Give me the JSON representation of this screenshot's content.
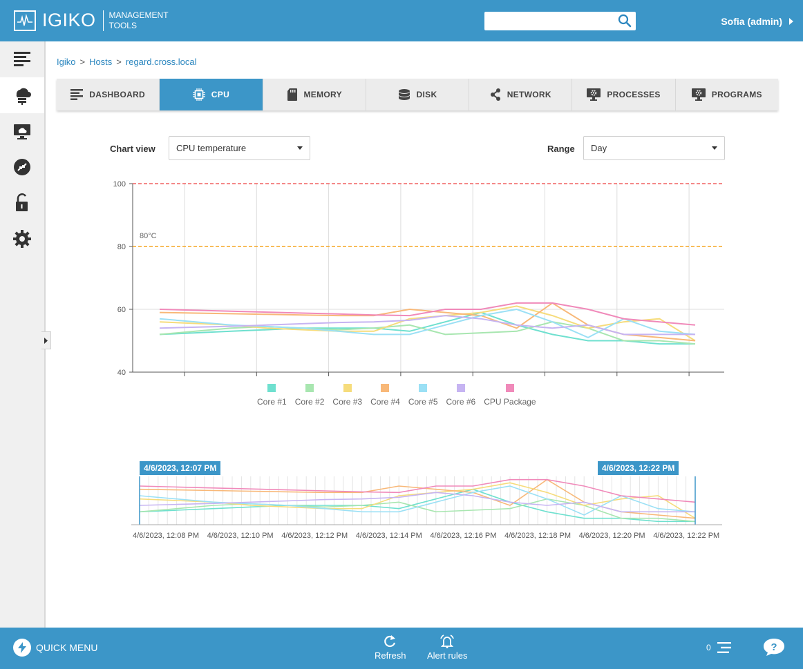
{
  "header": {
    "logo_name": "IGIKO",
    "logo_sub_line1": "MANAGEMENT",
    "logo_sub_line2": "TOOLS",
    "search_value": "",
    "user": "Sofia (admin)"
  },
  "sidebar": {
    "items": [
      {
        "icon": "menu-lines-icon"
      },
      {
        "icon": "cloud-server-icon",
        "active": true
      },
      {
        "icon": "cloud-monitor-icon"
      },
      {
        "icon": "remote-connect-icon"
      },
      {
        "icon": "unlock-icon"
      },
      {
        "icon": "gear-icon"
      }
    ]
  },
  "breadcrumb": {
    "items": [
      "Igiko",
      "Hosts",
      "regard.cross.local"
    ],
    "separator": ">"
  },
  "tabs": [
    {
      "label": "DASHBOARD",
      "icon": "dashboard-lines-icon"
    },
    {
      "label": "CPU",
      "icon": "cpu-chip-icon",
      "active": true
    },
    {
      "label": "MEMORY",
      "icon": "memory-card-icon"
    },
    {
      "label": "DISK",
      "icon": "disk-stack-icon"
    },
    {
      "label": "NETWORK",
      "icon": "network-share-icon"
    },
    {
      "label": "PROCESSES",
      "icon": "monitor-gear-icon"
    },
    {
      "label": "PROGRAMS",
      "icon": "monitor-gear-icon"
    }
  ],
  "controls": {
    "chart_view_label": "Chart view",
    "chart_view_value": "CPU temperature",
    "range_label": "Range",
    "range_value": "Day"
  },
  "chart_data": {
    "type": "line",
    "title": "",
    "ylim": [
      40,
      100
    ],
    "yticks": [
      40,
      60,
      80,
      100
    ],
    "threshold_warning": {
      "value": 80,
      "label": "80°C",
      "color": "#f5a623"
    },
    "threshold_max": {
      "value": 100,
      "color": "#f06060"
    },
    "x_points": 16,
    "series": [
      {
        "name": "Core #1",
        "color": "#6fe0cf",
        "values": [
          52,
          52.5,
          53,
          53.5,
          54,
          54,
          54,
          53,
          56,
          59,
          55,
          52,
          50,
          50,
          49,
          49
        ]
      },
      {
        "name": "Core #2",
        "color": "#a8e6b0",
        "values": [
          52,
          53,
          54,
          54.5,
          54,
          53.5,
          54,
          55,
          52,
          52.5,
          53,
          56,
          54,
          50,
          50,
          49
        ]
      },
      {
        "name": "Core #3",
        "color": "#f6dc7c",
        "values": [
          56,
          55.5,
          55,
          54,
          53.5,
          53,
          53,
          57,
          58,
          59,
          61,
          58,
          54,
          56,
          57,
          50
        ]
      },
      {
        "name": "Core #4",
        "color": "#f8b878",
        "values": [
          59,
          58.8,
          58.6,
          58.4,
          58.2,
          58,
          58,
          60,
          59,
          58,
          54,
          62,
          55,
          52,
          51,
          50
        ]
      },
      {
        "name": "Core #5",
        "color": "#9be0f5",
        "values": [
          57,
          56,
          55,
          54.5,
          54,
          53,
          52,
          52,
          55,
          58,
          60,
          56,
          51,
          57,
          53,
          52
        ]
      },
      {
        "name": "Core #6",
        "color": "#c6b4f2",
        "values": [
          54,
          54.3,
          54.6,
          55,
          55.4,
          55.8,
          56,
          56.5,
          58,
          57,
          55,
          54,
          55,
          52,
          52,
          52
        ]
      },
      {
        "name": "CPU Package",
        "color": "#f08aba",
        "values": [
          60,
          59.7,
          59.4,
          59.1,
          58.8,
          58.5,
          58.2,
          58,
          60,
          60,
          62,
          62,
          60,
          57,
          56,
          55
        ]
      }
    ],
    "navigator": {
      "start_label": "4/6/2023, 12:07 PM",
      "end_label": "4/6/2023, 12:22 PM",
      "tick_labels": [
        "4/6/2023, 12:08 PM",
        "4/6/2023, 12:10 PM",
        "4/6/2023, 12:12 PM",
        "4/6/2023, 12:14 PM",
        "4/6/2023, 12:16 PM",
        "4/6/2023, 12:18 PM",
        "4/6/2023, 12:20 PM",
        "4/6/2023, 12:22 PM"
      ]
    }
  },
  "footer": {
    "quick_menu": "QUICK MENU",
    "refresh": "Refresh",
    "alert_rules": "Alert rules",
    "count": "0"
  }
}
